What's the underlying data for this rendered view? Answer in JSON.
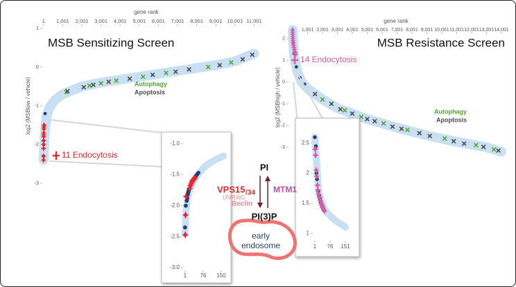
{
  "chart_data": [
    {
      "type": "scatter",
      "title": "MSB Sensitizing Screen",
      "x_label": "gene rank",
      "y_label": "log2 (MSBlow / vehicle)",
      "xlim": [
        -500,
        11600
      ],
      "ylim": [
        -3.1,
        1.1
      ],
      "xticks": [
        1,
        {
          "value": 1001,
          "label": "1,001"
        },
        {
          "value": 2001,
          "label": "2,001"
        },
        {
          "value": 3001,
          "label": "3,001"
        },
        {
          "value": 4001,
          "label": "4,001"
        },
        {
          "value": 5001,
          "label": "5,001"
        },
        {
          "value": 6001,
          "label": "6,001"
        },
        {
          "value": 7001,
          "label": "7,001"
        },
        {
          "value": 8001,
          "label": "8,001"
        },
        {
          "value": 9001,
          "label": "9,001"
        },
        {
          "value": 10001,
          "label": "10,001"
        },
        {
          "value": 11001,
          "label": "11,001"
        }
      ],
      "yticks": [
        1,
        0,
        -1,
        -2,
        -3
      ],
      "series": [
        {
          "marker": "line",
          "color": "#c9dff2",
          "x": [
            1,
            50,
            150,
            300,
            600,
            1001,
            2001,
            3001,
            5001,
            7001,
            9001,
            10001,
            11001
          ],
          "values": [
            -2.4,
            -1.8,
            -1.3,
            -1.05,
            -0.85,
            -0.7,
            -0.5,
            -0.4,
            -0.25,
            -0.1,
            0.05,
            0.15,
            0.35
          ]
        },
        {
          "marker": "circle",
          "color": "#1f3f77",
          "x": [
            1,
            4,
            8,
            30,
            80
          ],
          "values": [
            -2.3,
            -2.0,
            -1.9,
            -1.5,
            -1.2
          ]
        },
        {
          "name": "Autophagy",
          "marker": "x",
          "color": "#4ea72e",
          "x": [
            1200,
            2400,
            3000,
            3800,
            5200,
            6400,
            8600,
            9800
          ],
          "values": [
            -0.65,
            -0.48,
            -0.42,
            -0.35,
            -0.25,
            -0.15,
            0.0,
            0.12
          ]
        },
        {
          "name": "Apoptosis",
          "marker": "x",
          "color": "#4a4a4a",
          "x": [
            1250,
            2100,
            2600,
            3400,
            4500,
            5700,
            6900,
            7600,
            9200,
            10400,
            10900
          ],
          "values": [
            -0.62,
            -0.52,
            -0.46,
            -0.38,
            -0.3,
            -0.2,
            -0.12,
            -0.06,
            0.05,
            0.2,
            0.32
          ]
        },
        {
          "name": "11 Endocytosis",
          "marker": "diamond",
          "color": "#e3262b",
          "x": [
            1,
            2,
            3,
            5,
            6,
            8,
            10,
            12,
            15,
            20,
            25
          ],
          "values": [
            -2.4,
            -2.3,
            -2.1,
            -2.0,
            -1.9,
            -1.8,
            -1.75,
            -1.7,
            -1.6,
            -1.55,
            -1.5
          ]
        }
      ]
    },
    {
      "type": "scatter",
      "title": "MSB Resistance Screen",
      "x_label": "gene rank",
      "y_label": "log2 (MSBhigh / vehicle)",
      "xlim": [
        -300,
        14500
      ],
      "ylim": [
        -3.3,
        2.6
      ],
      "xticks": [
        1,
        {
          "value": 1001,
          "label": "1,001"
        },
        {
          "value": 2001,
          "label": "2,001"
        },
        {
          "value": 3001,
          "label": "3,001"
        },
        {
          "value": 4001,
          "label": "4,001"
        },
        {
          "value": 5001,
          "label": "5,001"
        },
        {
          "value": 6001,
          "label": "6,001"
        },
        {
          "value": 7001,
          "label": "7,001"
        },
        {
          "value": 8001,
          "label": "8,001"
        },
        {
          "value": 9001,
          "label": "9,001"
        },
        {
          "value": 10001,
          "label": "10,001"
        },
        {
          "value": 11001,
          "label": "11,001"
        },
        {
          "value": 12001,
          "label": "12,001"
        },
        {
          "value": 13001,
          "label": "13,001"
        },
        {
          "value": 14001,
          "label": "14,001"
        }
      ],
      "yticks": [
        2,
        1,
        0,
        -1,
        -2,
        -3
      ],
      "series": [
        {
          "marker": "line",
          "color": "#c9dff2",
          "x": [
            1,
            100,
            300,
            600,
            1001,
            2001,
            3001,
            5001,
            7001,
            9001,
            11001,
            13001,
            14001
          ],
          "values": [
            2.4,
            1.2,
            0.5,
            0.0,
            -0.3,
            -0.8,
            -1.2,
            -1.7,
            -2.1,
            -2.45,
            -2.75,
            -3.0,
            -3.2
          ]
        },
        {
          "marker": "circle",
          "color": "#1f3f77",
          "x": [
            40,
            100,
            250,
            500,
            800
          ],
          "values": [
            1.8,
            1.3,
            0.7,
            0.2,
            -0.1
          ]
        },
        {
          "name": "Autophagy",
          "marker": "x",
          "color": "#4ea72e",
          "x": [
            2000,
            3500,
            4600,
            6100,
            7700,
            10200,
            12300,
            13500
          ],
          "values": [
            -0.8,
            -1.3,
            -1.6,
            -1.9,
            -2.2,
            -2.6,
            -2.9,
            -3.1
          ]
        },
        {
          "name": "Apoptosis",
          "marker": "x",
          "color": "#4a4a4a",
          "x": [
            1500,
            2600,
            3200,
            4000,
            5000,
            5500,
            6700,
            7300,
            8500,
            9200,
            10800,
            11500,
            12800,
            13800
          ],
          "values": [
            -0.55,
            -1.0,
            -1.25,
            -1.45,
            -1.7,
            -1.8,
            -2.05,
            -2.15,
            -2.35,
            -2.48,
            -2.72,
            -2.83,
            -2.98,
            -3.15
          ]
        },
        {
          "name": "14 Endocytosis",
          "marker": "diamond",
          "color": "#d85aa3",
          "x": [
            1,
            3,
            5,
            8,
            12,
            20,
            35,
            60,
            90,
            120,
            140,
            150,
            160,
            170
          ],
          "values": [
            2.4,
            2.3,
            2.2,
            2.1,
            2.0,
            1.9,
            1.8,
            1.7,
            1.6,
            1.5,
            1.4,
            1.35,
            1.3,
            1.25
          ]
        }
      ]
    },
    {
      "type": "scatter",
      "xlim": [
        -73,
        179
      ],
      "ylim": [
        -3.11,
        -0.88
      ],
      "xticks": [
        1,
        76,
        150
      ],
      "yticks": [
        {
          "value": -1,
          "label": "-1.0"
        },
        -1.5,
        {
          "value": -2,
          "label": "-2.0"
        },
        -2.5,
        {
          "value": -3,
          "label": "-3.0"
        }
      ],
      "series": [
        {
          "marker": "line",
          "color": "#c9dff2",
          "x": [
            1,
            5,
            10,
            20,
            30,
            45,
            60,
            80,
            100,
            130,
            160
          ],
          "values": [
            -2.45,
            -2.1,
            -1.9,
            -1.75,
            -1.65,
            -1.55,
            -1.47,
            -1.38,
            -1.32,
            -1.25,
            -1.2
          ]
        },
        {
          "marker": "circle",
          "color": "#1f3f77",
          "x": [
            1,
            4,
            8,
            10,
            12,
            14,
            16,
            18,
            44,
            50,
            56
          ],
          "values": [
            -2.35,
            -2.0,
            -1.92,
            -1.88,
            -1.82,
            -1.79,
            -1.76,
            -1.74,
            -1.53,
            -1.5,
            -1.47
          ]
        },
        {
          "marker": "diamond",
          "color": "#e3262b",
          "x": [
            2,
            3,
            5,
            20,
            23,
            26,
            29,
            32,
            35,
            38,
            41
          ],
          "values": [
            -2.47,
            -2.15,
            -1.85,
            -1.72,
            -1.68,
            -1.65,
            -1.62,
            -1.6,
            -1.58,
            -1.57,
            -1.55
          ]
        }
      ]
    },
    {
      "type": "scatter",
      "xlim": [
        -77,
        202
      ],
      "ylim": [
        0.9,
        2.8
      ],
      "xticks": [
        1,
        76,
        151
      ],
      "yticks": [
        2.5,
        2,
        1.5,
        1
      ],
      "series": [
        {
          "marker": "line",
          "color": "#c9dff2",
          "x": [
            1,
            20,
            40,
            60,
            80,
            100,
            120,
            140,
            151
          ],
          "values": [
            2.6,
            1.7,
            1.45,
            1.35,
            1.28,
            1.22,
            1.17,
            1.13,
            1.1
          ]
        },
        {
          "marker": "circle",
          "color": "#1f3f77",
          "x": [
            1,
            6,
            9,
            12,
            18,
            22,
            26,
            30,
            34,
            38,
            42,
            46
          ],
          "values": [
            2.6,
            2.45,
            2.0,
            1.9,
            1.7,
            1.63,
            1.58,
            1.52,
            1.49,
            1.45,
            1.41,
            1.38
          ]
        },
        {
          "marker": "diamond",
          "color": "#d85aa3",
          "x": [
            3,
            5,
            8,
            10,
            14,
            16,
            20,
            24,
            28,
            32,
            36,
            40,
            44,
            48
          ],
          "values": [
            2.4,
            2.3,
            2.05,
            1.95,
            1.8,
            1.72,
            1.65,
            1.6,
            1.55,
            1.5,
            1.47,
            1.43,
            1.4,
            1.37
          ]
        }
      ]
    }
  ],
  "diagram": {
    "substrate": "PI",
    "product": "PI(3)P",
    "kinase": "VPS15",
    "kinase_suffix": "/34",
    "cofactors": [
      "UVRAG",
      "Beclin"
    ],
    "phosphatase": "MTM1",
    "compartment": [
      "early",
      "endosome"
    ]
  }
}
